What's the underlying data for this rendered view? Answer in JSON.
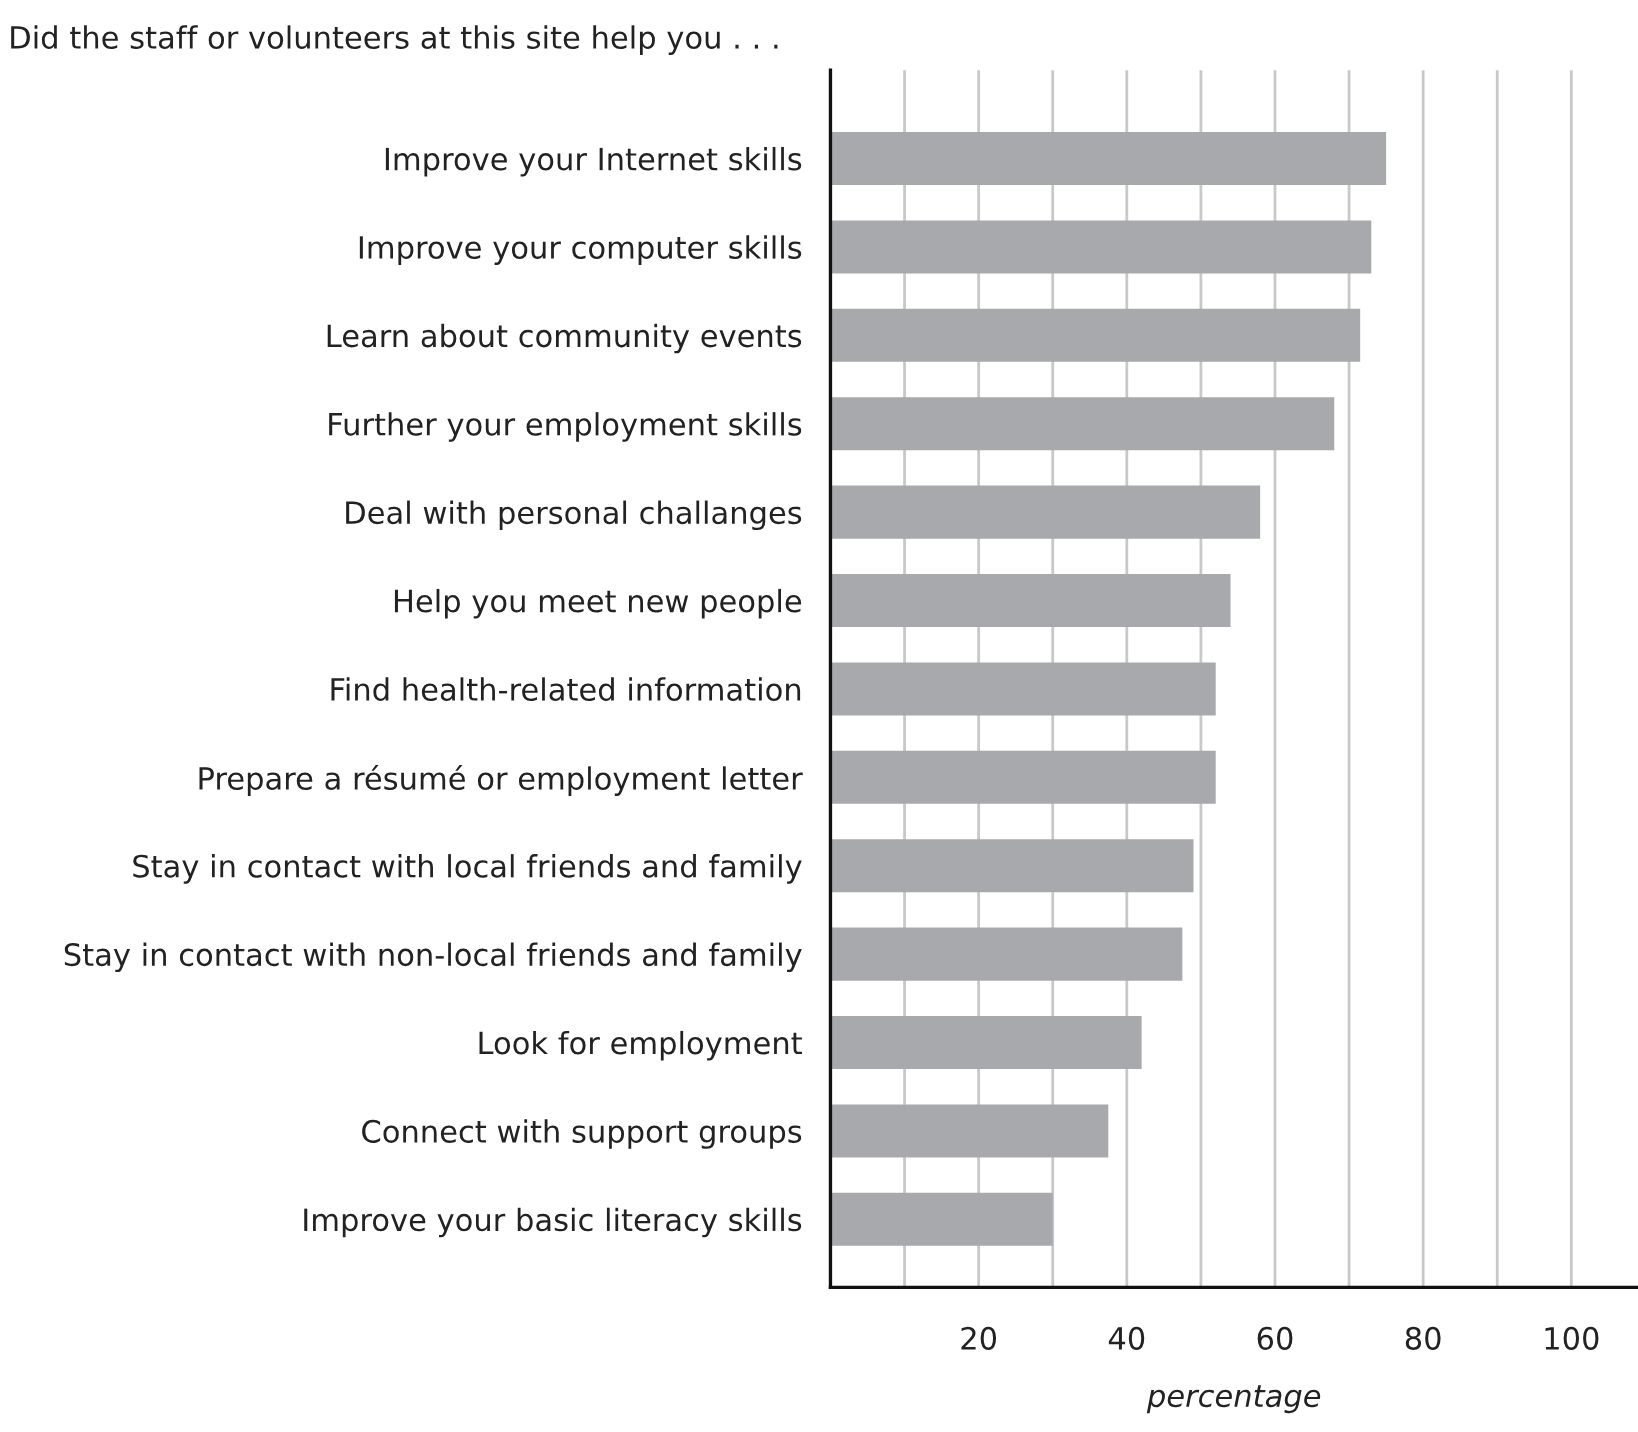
{
  "chart_data": {
    "type": "bar",
    "orientation": "horizontal",
    "title": "Did the staff or volunteers at this site help you . . .",
    "xlabel": "percentage",
    "categories": [
      "Improve your Internet skills",
      "Improve your computer skills",
      "Learn about community events",
      "Further your employment skills",
      "Deal with personal challanges",
      "Help you meet new people",
      "Find health-related information",
      "Prepare a résumé or employment letter",
      "Stay in contact with local friends and family",
      "Stay in contact with non-local friends and family",
      "Look for employment",
      "Connect with support groups",
      "Improve your basic literacy skills"
    ],
    "values": [
      75,
      73,
      71.5,
      68,
      58,
      54,
      52,
      52,
      49,
      47.5,
      42,
      37.5,
      30
    ],
    "color": "#a8a9ad",
    "xlim": [
      0,
      109
    ],
    "xticks": [
      {
        "value": 10,
        "label": null
      },
      20,
      {
        "value": 30,
        "label": null
      },
      40,
      {
        "value": 50,
        "label": null
      },
      60,
      {
        "value": 70,
        "label": null
      },
      80,
      {
        "value": 90,
        "label": null
      },
      100
    ],
    "grid": "x"
  }
}
